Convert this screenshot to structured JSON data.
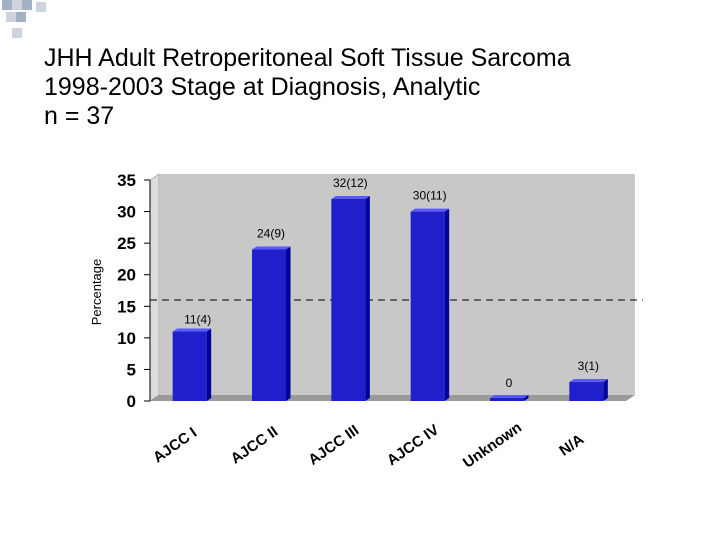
{
  "slide": {
    "title_lines": [
      "JHH Adult Retroperitoneal Soft Tissue Sarcoma",
      "1998-2003 Stage at Diagnosis, Analytic",
      "n = 37"
    ]
  },
  "colors": {
    "bar": "#1f1fcc",
    "bar_side": "#00009a",
    "bar_top": "#5a5aff",
    "wall": "#c8c8c8",
    "deco_square": "#5a6f92"
  },
  "chart_data": {
    "type": "bar",
    "ylabel": "Percentage",
    "xlabel": "",
    "ylim": [
      0,
      35
    ],
    "yticks": [
      0,
      5,
      10,
      15,
      20,
      25,
      30,
      35
    ],
    "reference_line": 16,
    "categories": [
      "AJCC I",
      "AJCC II",
      "AJCC III",
      "AJCC IV",
      "Unknown",
      "N/A"
    ],
    "values": [
      11,
      24,
      32,
      30,
      0,
      3
    ],
    "data_labels": [
      "11(4)",
      "24(9)",
      "32(12)",
      "30(11)",
      "0",
      "3(1)"
    ]
  }
}
